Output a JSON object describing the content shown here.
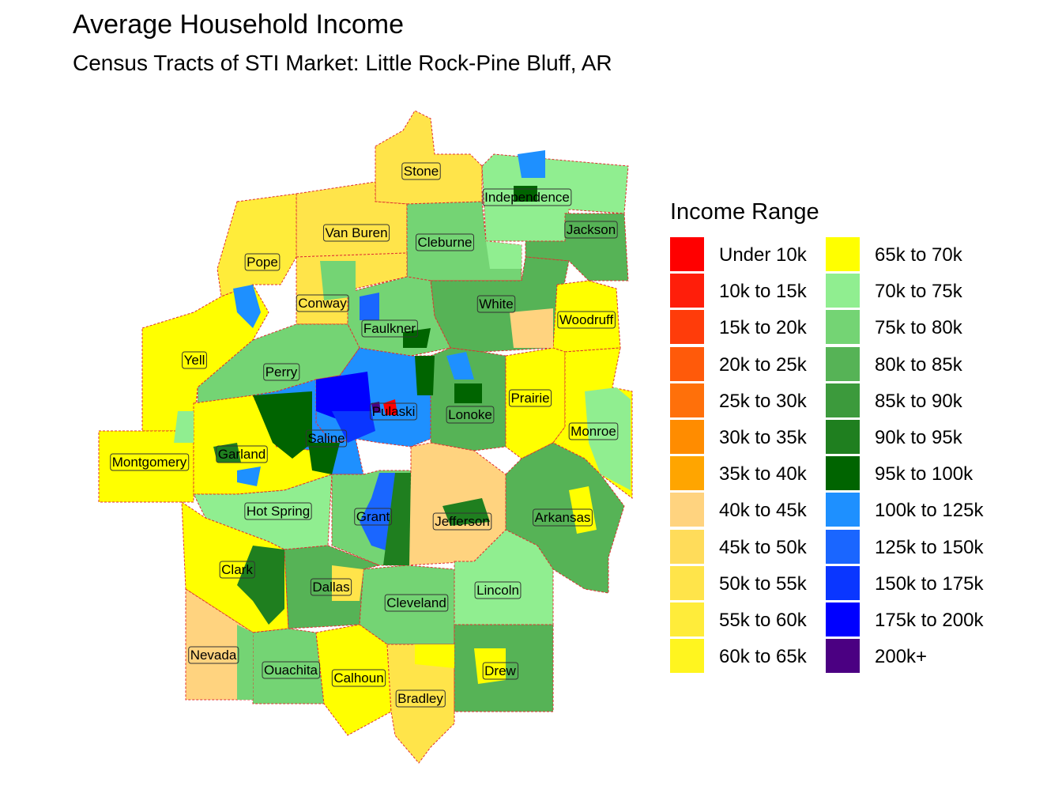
{
  "title": "Average Household Income",
  "subtitle": "Census Tracts of STI Market: Little Rock-Pine Bluff, AR",
  "legend": {
    "title": "Income Range",
    "items": [
      {
        "label": "Under 10k",
        "color": "#ff0000"
      },
      {
        "label": "10k to 15k",
        "color": "#ff1e0a"
      },
      {
        "label": "15k to 20k",
        "color": "#ff3c0a"
      },
      {
        "label": "20k to 25k",
        "color": "#ff5a0a"
      },
      {
        "label": "25k to 30k",
        "color": "#ff700a"
      },
      {
        "label": "30k to 35k",
        "color": "#ff8c00"
      },
      {
        "label": "35k to 40k",
        "color": "#ffa500"
      },
      {
        "label": "40k to 45k",
        "color": "#ffd37f"
      },
      {
        "label": "45k to 50k",
        "color": "#ffdc5a"
      },
      {
        "label": "50k to 55k",
        "color": "#ffe44a"
      },
      {
        "label": "55k to 60k",
        "color": "#ffec3a"
      },
      {
        "label": "60k to 65k",
        "color": "#fff51f"
      },
      {
        "label": "65k to 70k",
        "color": "#ffff00"
      },
      {
        "label": "70k to 75k",
        "color": "#90ee90"
      },
      {
        "label": "75k to 80k",
        "color": "#74d474"
      },
      {
        "label": "80k to 85k",
        "color": "#56b356"
      },
      {
        "label": "85k to 90k",
        "color": "#3c9a3c"
      },
      {
        "label": "90k to 95k",
        "color": "#1f7f1f"
      },
      {
        "label": "95k to 100k",
        "color": "#006400"
      },
      {
        "label": "100k to 125k",
        "color": "#1e90ff"
      },
      {
        "label": "125k to 150k",
        "color": "#1a66ff"
      },
      {
        "label": "150k to 175k",
        "color": "#0a36ff"
      },
      {
        "label": "175k to 200k",
        "color": "#0000ff"
      },
      {
        "label": "200k+",
        "color": "#4b0082"
      }
    ]
  },
  "counties": [
    {
      "name": "Stone",
      "color": "#ffe44a"
    },
    {
      "name": "Independence",
      "color": "#90ee90"
    },
    {
      "name": "Van Buren",
      "color": "#ffe44a"
    },
    {
      "name": "Cleburne",
      "color": "#74d474"
    },
    {
      "name": "Jackson",
      "color": "#56b356"
    },
    {
      "name": "Pope",
      "color": "#ffec3a"
    },
    {
      "name": "Conway",
      "color": "#ffe44a"
    },
    {
      "name": "White",
      "color": "#56b356"
    },
    {
      "name": "Faulkner",
      "color": "#74d474"
    },
    {
      "name": "Woodruff",
      "color": "#ffff00"
    },
    {
      "name": "Yell",
      "color": "#ffff00"
    },
    {
      "name": "Perry",
      "color": "#74d474"
    },
    {
      "name": "Pulaski",
      "color": "#1e90ff"
    },
    {
      "name": "Lonoke",
      "color": "#56b356"
    },
    {
      "name": "Prairie",
      "color": "#ffff00"
    },
    {
      "name": "Saline",
      "color": "#1e90ff"
    },
    {
      "name": "Monroe",
      "color": "#ffff00"
    },
    {
      "name": "Montgomery",
      "color": "#ffff00"
    },
    {
      "name": "Garland",
      "color": "#ffff00"
    },
    {
      "name": "Hot Spring",
      "color": "#90ee90"
    },
    {
      "name": "Grant",
      "color": "#74d474"
    },
    {
      "name": "Jefferson",
      "color": "#ffd37f"
    },
    {
      "name": "Arkansas",
      "color": "#56b356"
    },
    {
      "name": "Clark",
      "color": "#ffff00"
    },
    {
      "name": "Dallas",
      "color": "#56b356"
    },
    {
      "name": "Cleveland",
      "color": "#74d474"
    },
    {
      "name": "Lincoln",
      "color": "#90ee90"
    },
    {
      "name": "Nevada",
      "color": "#ffd37f"
    },
    {
      "name": "Ouachita",
      "color": "#74d474"
    },
    {
      "name": "Calhoun",
      "color": "#ffff00"
    },
    {
      "name": "Bradley",
      "color": "#ffe44a"
    },
    {
      "name": "Drew",
      "color": "#56b356"
    }
  ]
}
